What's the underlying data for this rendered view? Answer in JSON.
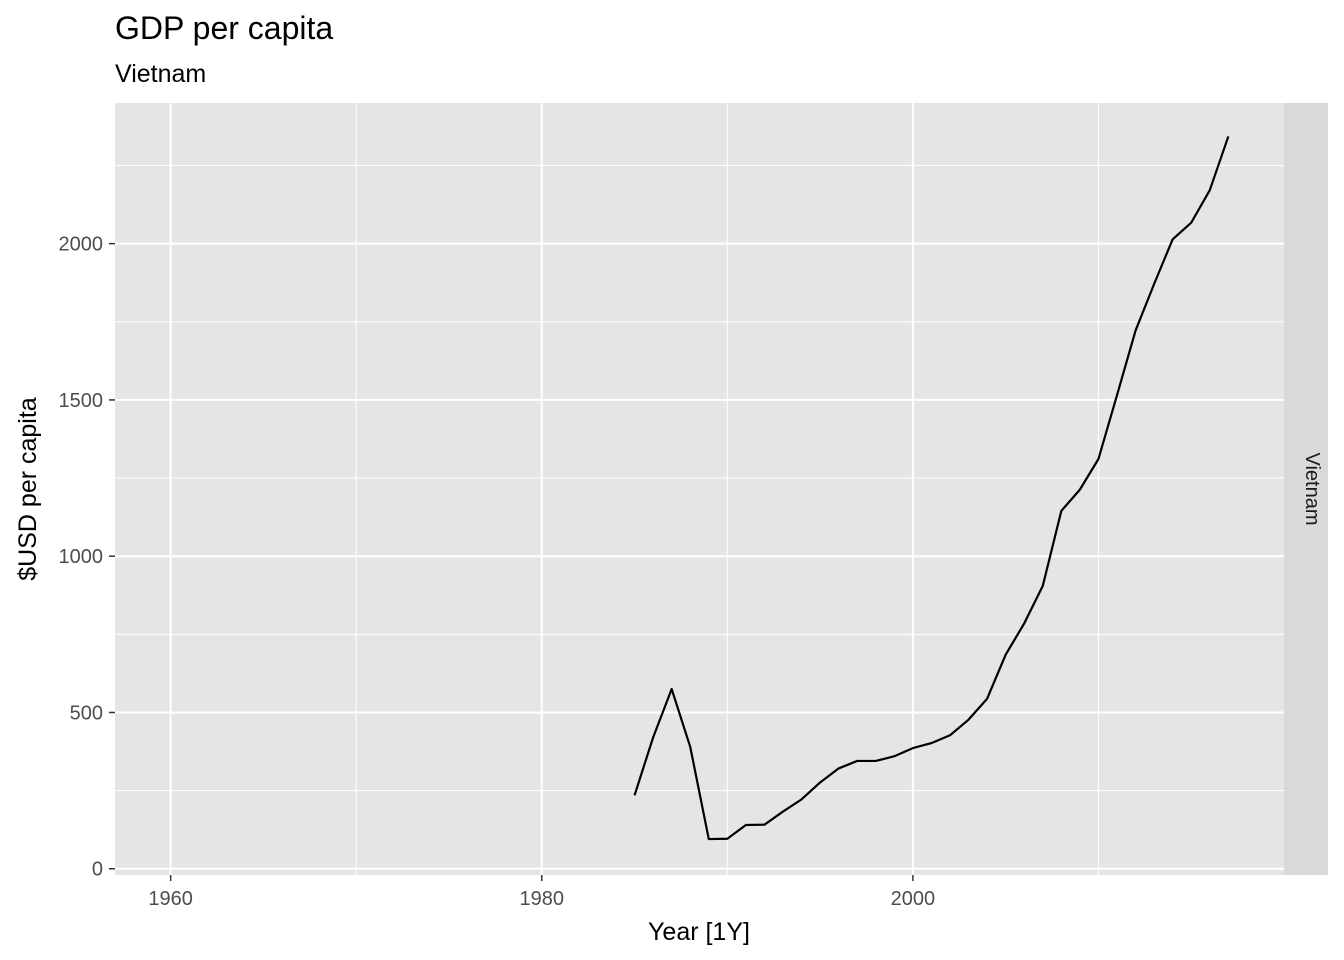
{
  "chart_data": {
    "type": "line",
    "title": "GDP per capita",
    "subtitle": "Vietnam",
    "xlabel": "Year [1Y]",
    "ylabel": "$USD per capita",
    "facet_label": "Vietnam",
    "xlim": [
      1957,
      2020
    ],
    "ylim": [
      -20,
      2450
    ],
    "x_ticks": [
      1960,
      1980,
      2000
    ],
    "x_tick_labels": [
      "1960",
      "1980",
      "2000"
    ],
    "y_ticks": [
      0,
      500,
      1000,
      1500,
      2000
    ],
    "y_tick_labels": [
      "0",
      "500",
      "1000",
      "1500",
      "2000"
    ],
    "grid": true,
    "colors": {
      "panel": "#e5e5e5",
      "grid": "#ffffff",
      "strip": "#d9d9d9",
      "line": "#000000"
    },
    "series": [
      {
        "x": [
          1985,
          1986,
          1987,
          1988,
          1989,
          1990,
          1991,
          1992,
          1993,
          1994,
          1995,
          1996,
          1997,
          1998,
          1999,
          2000,
          2001,
          2002,
          2003,
          2004,
          2005,
          2006,
          2007,
          2008,
          2009,
          2010,
          2011,
          2012,
          2013,
          2014,
          2015,
          2016,
          2017
        ],
        "values": [
          235,
          420,
          575,
          390,
          95,
          96,
          140,
          141,
          183,
          222,
          276,
          321,
          345,
          345,
          360,
          386,
          402,
          427,
          477,
          544,
          685,
          785,
          905,
          1145,
          1213,
          1311,
          1515,
          1722,
          1871,
          2014,
          2067,
          2171,
          2343
        ]
      }
    ]
  }
}
